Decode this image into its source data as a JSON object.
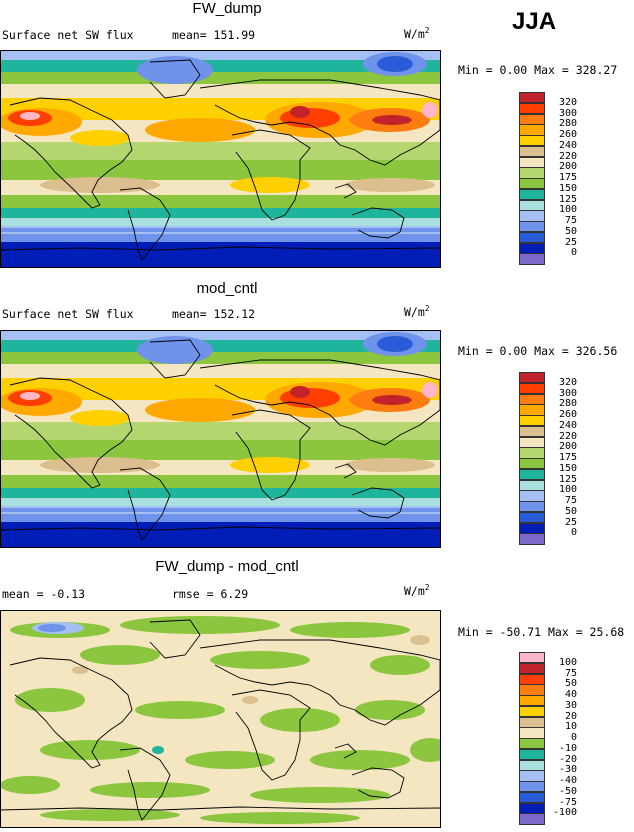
{
  "season": "JJA",
  "palette_sw": [
    "#7b68c8",
    "#001db5",
    "#2a5bd8",
    "#6f92ea",
    "#a6bff3",
    "#a8e0e0",
    "#1fb59c",
    "#8cc63f",
    "#b5d66e",
    "#f5e6c2",
    "#dcbf8e",
    "#ffd000",
    "#ffa800",
    "#ff7d10",
    "#ff3f00",
    "#c0242a",
    "#ffb6c8",
    "#ff2aa5"
  ],
  "palette_diff": [
    "#7b68c8",
    "#001db5",
    "#2a5bd8",
    "#6f92ea",
    "#a6bff3",
    "#a8e0e0",
    "#1fb59c",
    "#8cc63f",
    "#f5e6c2",
    "#dcbf8e",
    "#ffd000",
    "#ffa800",
    "#ff7d10",
    "#ff3f00",
    "#c0242a",
    "#ffb6c8",
    "#ff2aa5"
  ],
  "panels": [
    {
      "title": "FW_dump",
      "left_label": "Surface net SW flux",
      "stat": "mean= 151.99",
      "units": "W/m",
      "units_sup": "2",
      "range": "Min =   0.00 Max = 328.27",
      "levels": [
        "320",
        "300",
        "280",
        "260",
        "240",
        "220",
        "200",
        "175",
        "150",
        "125",
        "100",
        "75",
        "50",
        "25",
        "0"
      ]
    },
    {
      "title": "mod_cntl",
      "left_label": "Surface net SW flux",
      "stat": "mean= 152.12",
      "units": "W/m",
      "units_sup": "2",
      "range": "Min =   0.00 Max = 326.56",
      "levels": [
        "320",
        "300",
        "280",
        "260",
        "240",
        "220",
        "200",
        "175",
        "150",
        "125",
        "100",
        "75",
        "50",
        "25",
        "0"
      ]
    },
    {
      "title": "FW_dump - mod_cntl",
      "left_label": "mean =  -0.13",
      "stat": "rmse =   6.29",
      "units": "W/m",
      "units_sup": "2",
      "range": "Min = -50.71 Max =  25.68",
      "levels": [
        "100",
        "75",
        "50",
        "40",
        "30",
        "20",
        "10",
        "0",
        "-10",
        "-20",
        "-30",
        "-40",
        "-50",
        "-75",
        "-100"
      ]
    }
  ]
}
